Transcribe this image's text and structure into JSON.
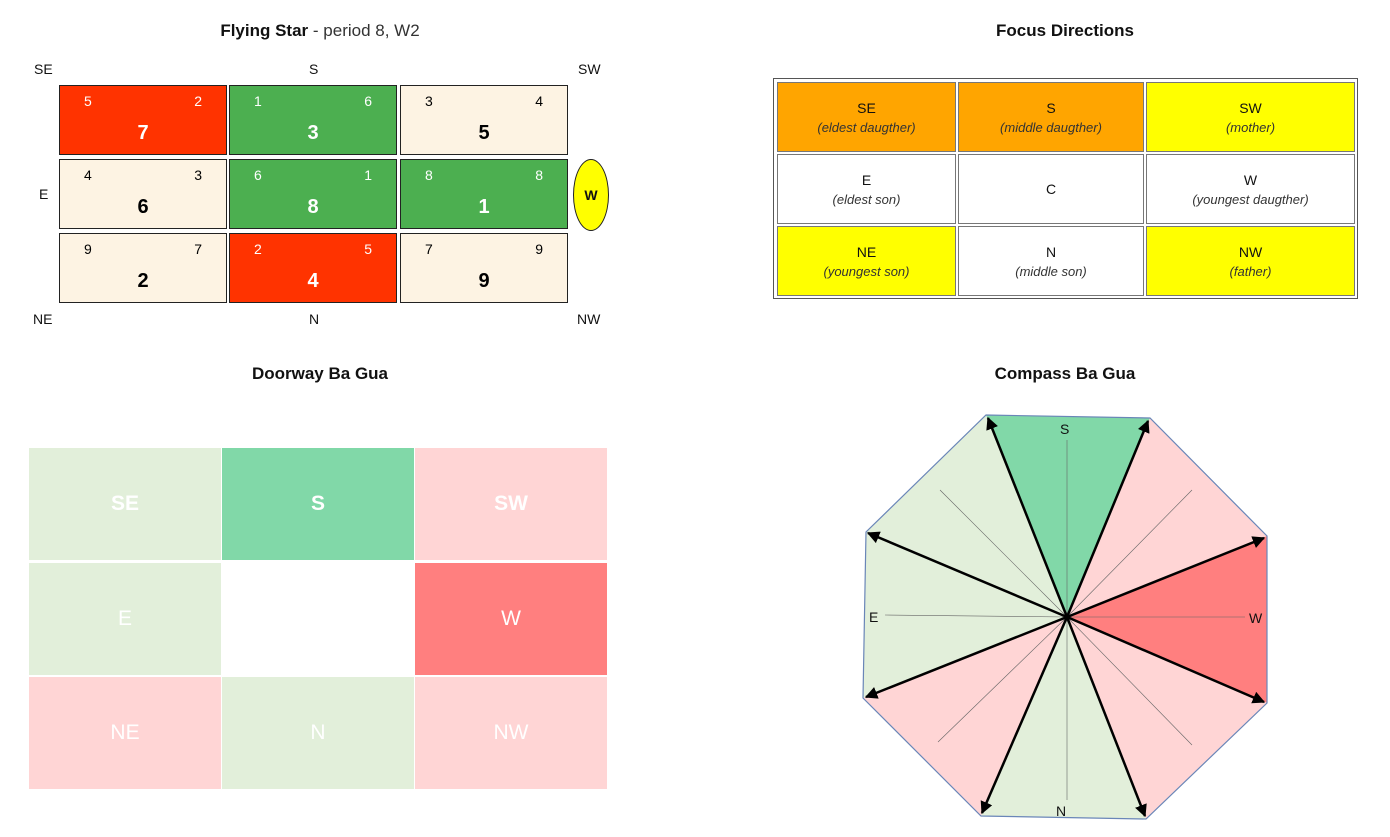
{
  "colors": {
    "red": "#ff3300",
    "green": "#4caf50",
    "cream": "#fdf3e3",
    "orange": "#ffa500",
    "yellow": "#ffff00",
    "mint": "#81d8a8",
    "pale_green": "#e2efda",
    "pale_red": "#ffd5d5",
    "salmon": "#ff7f7f"
  },
  "flying_star": {
    "title_bold": "Flying Star",
    "title_rest": " - period 8, W2",
    "dir_labels": {
      "se": "SE",
      "s": "S",
      "sw": "SW",
      "e": "E",
      "ne": "NE",
      "n": "N",
      "nw": "NW"
    },
    "w_marker": "W",
    "cells": [
      {
        "tl": "5",
        "tr": "2",
        "mid": "7",
        "fill": "red"
      },
      {
        "tl": "1",
        "tr": "6",
        "mid": "3",
        "fill": "green"
      },
      {
        "tl": "3",
        "tr": "4",
        "mid": "5",
        "fill": "cream"
      },
      {
        "tl": "4",
        "tr": "3",
        "mid": "6",
        "fill": "cream"
      },
      {
        "tl": "6",
        "tr": "1",
        "mid": "8",
        "fill": "green"
      },
      {
        "tl": "8",
        "tr": "8",
        "mid": "1",
        "fill": "green"
      },
      {
        "tl": "9",
        "tr": "7",
        "mid": "2",
        "fill": "cream"
      },
      {
        "tl": "2",
        "tr": "5",
        "mid": "4",
        "fill": "red"
      },
      {
        "tl": "7",
        "tr": "9",
        "mid": "9",
        "fill": "cream"
      }
    ]
  },
  "focus": {
    "title": "Focus Directions",
    "cells": [
      {
        "dir": "SE",
        "role": "(eldest daugther)",
        "fill": "orange"
      },
      {
        "dir": "S",
        "role": "(middle daugther)",
        "fill": "orange"
      },
      {
        "dir": "SW",
        "role": "(mother)",
        "fill": "yellow"
      },
      {
        "dir": "E",
        "role": "(eldest son)",
        "fill": "white"
      },
      {
        "dir": "C",
        "role": "",
        "fill": "white"
      },
      {
        "dir": "W",
        "role": "(youngest daugther)",
        "fill": "white"
      },
      {
        "dir": "NE",
        "role": "(youngest son)",
        "fill": "yellow"
      },
      {
        "dir": "N",
        "role": "(middle son)",
        "fill": "white"
      },
      {
        "dir": "NW",
        "role": "(father)",
        "fill": "yellow"
      }
    ]
  },
  "doorway": {
    "title": "Doorway Ba Gua",
    "cells": [
      {
        "label": "SE",
        "fill": "pale_green",
        "bold": true
      },
      {
        "label": "S",
        "fill": "mint",
        "bold": true
      },
      {
        "label": "SW",
        "fill": "pale_red",
        "bold": true
      },
      {
        "label": "E",
        "fill": "pale_green",
        "bold": false
      },
      {
        "label": "",
        "fill": "white",
        "bold": false
      },
      {
        "label": "W",
        "fill": "salmon",
        "bold": false
      },
      {
        "label": "NE",
        "fill": "pale_red",
        "bold": false
      },
      {
        "label": "N",
        "fill": "pale_green",
        "bold": false
      },
      {
        "label": "NW",
        "fill": "pale_red",
        "bold": false
      }
    ]
  },
  "compass": {
    "title": "Compass Ba Gua",
    "labels": {
      "s": "S",
      "e": "E",
      "w": "W",
      "n": "N"
    },
    "sectors": [
      {
        "name": "sector-s",
        "fill": "mint"
      },
      {
        "name": "sector-sw",
        "fill": "pale_red"
      },
      {
        "name": "sector-w",
        "fill": "salmon"
      },
      {
        "name": "sector-nw",
        "fill": "pale_red"
      },
      {
        "name": "sector-n",
        "fill": "pale_green"
      },
      {
        "name": "sector-ne",
        "fill": "pale_red"
      },
      {
        "name": "sector-e",
        "fill": "pale_green"
      },
      {
        "name": "sector-se",
        "fill": "pale_green"
      }
    ]
  }
}
